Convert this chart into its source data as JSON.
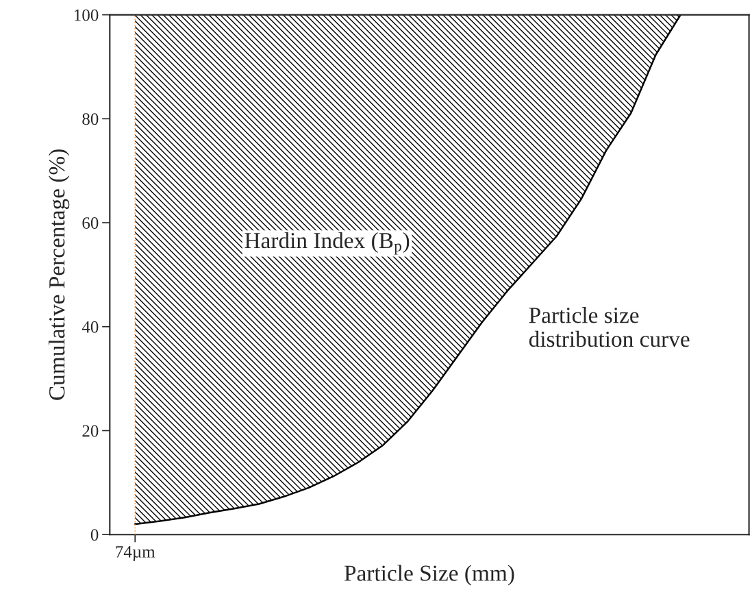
{
  "chart_data": {
    "type": "area",
    "stacked": true,
    "xlabel": "Particle Size (mm)",
    "ylabel": "Cumulative Percentage (%)",
    "categories": [
      "74µm",
      null,
      null,
      null,
      null,
      null,
      null,
      null,
      null,
      null,
      null,
      null,
      null,
      null,
      null,
      null,
      null,
      null,
      null,
      null,
      null,
      null,
      null
    ],
    "series": [
      {
        "color": "#ffffff",
        "values": [
          2,
          2.6,
          3.3,
          4.2,
          5,
          5.9,
          7.3,
          9,
          11.2,
          13.9,
          17.2,
          21.8,
          27.7,
          34.3,
          40.9,
          46.8,
          52.1,
          57.4,
          64.6,
          73.9,
          81.1,
          92.3,
          100
        ]
      },
      {
        "color": "#000000",
        "values": [
          98,
          97.4,
          96.7,
          95.8,
          95,
          94.1,
          92.7,
          91,
          88.8,
          86.1,
          82.8,
          78.2,
          72.3,
          65.7,
          59.1,
          53.2,
          47.9,
          42.6,
          35.4,
          26.1,
          18.9,
          7.7,
          0
        ]
      }
    ],
    "ylim": [
      0,
      100
    ],
    "yticks": [
      0,
      20,
      40,
      60,
      80,
      100
    ],
    "ref_lines": [
      {
        "axis": "x",
        "value": "74µm",
        "color": "#f4a460",
        "line_style": "dotted"
      }
    ],
    "annotations": [
      "Hardin Index (B$_{p}$)",
      "Particle size\ndistribution curve"
    ]
  }
}
